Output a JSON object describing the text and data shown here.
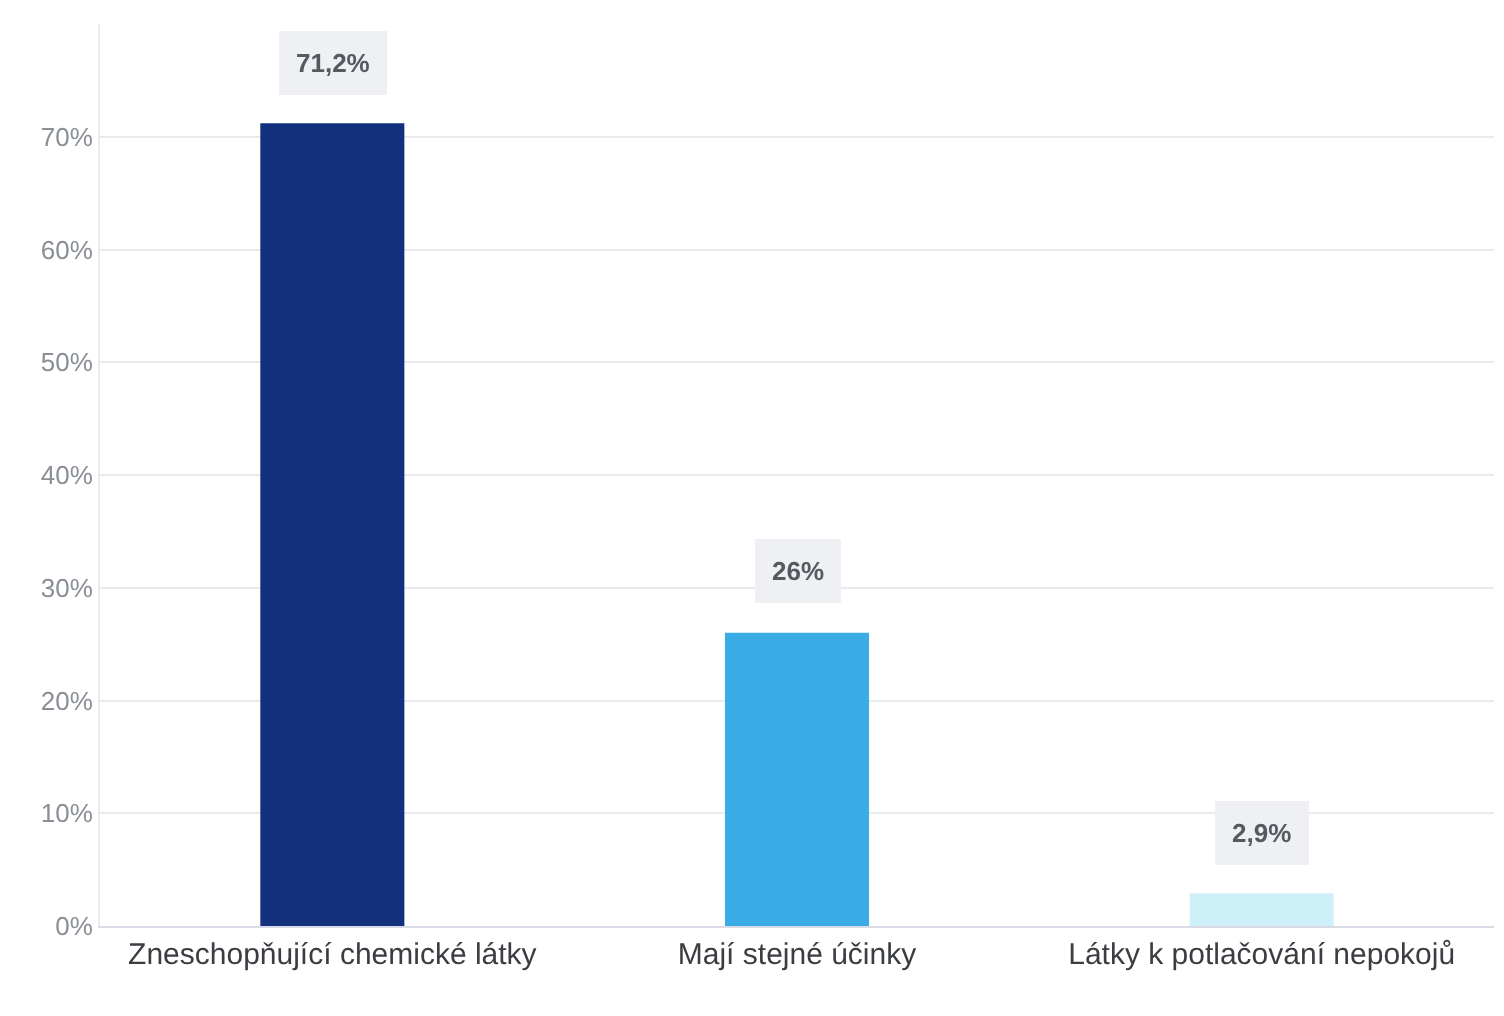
{
  "chart_data": {
    "type": "bar",
    "categories": [
      "Zneschopňující chemické látky",
      "Mají stejné účinky",
      "Látky k potlačování nepokojů"
    ],
    "values": [
      71.2,
      26,
      2.9
    ],
    "colors": [
      "#13307f",
      "#3aace5",
      "#cdf0f9"
    ],
    "value_labels": [
      "71,2%",
      "26%",
      "2,9%"
    ],
    "ylim": [
      0,
      80
    ],
    "yticks": [
      {
        "value": 0,
        "label": "0%"
      },
      {
        "value": 10,
        "label": "10%"
      },
      {
        "value": 20,
        "label": "20%"
      },
      {
        "value": 30,
        "label": "30%"
      },
      {
        "value": 40,
        "label": "40%"
      },
      {
        "value": 50,
        "label": "50%"
      },
      {
        "value": 60,
        "label": "60%"
      },
      {
        "value": 70,
        "label": "70%"
      }
    ],
    "grid": "y",
    "legend": false
  }
}
